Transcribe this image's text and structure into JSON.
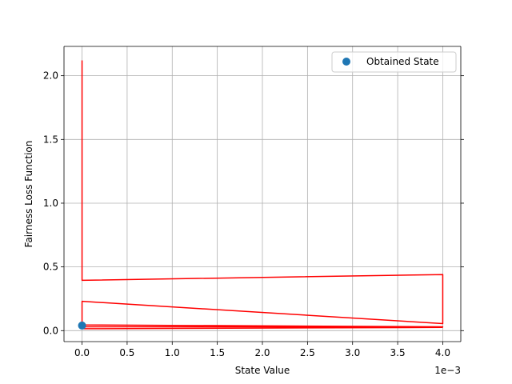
{
  "chart_data": {
    "type": "line",
    "title": "",
    "xlabel": "State Value",
    "ylabel": "Fairness Loss Function",
    "x_offset_text": "1e−3",
    "xlim": [
      -0.0002,
      0.0042
    ],
    "ylim": [
      -0.086,
      2.23
    ],
    "grid": true,
    "legend_position": "top-right",
    "x_ticks": [
      0.0,
      0.0005,
      0.001,
      0.0015,
      0.002,
      0.0025,
      0.003,
      0.0035,
      0.004
    ],
    "x_tick_labels": [
      "0.0",
      "0.5",
      "1.0",
      "1.5",
      "2.0",
      "2.5",
      "3.0",
      "3.5",
      "4.0"
    ],
    "y_ticks": [
      0.0,
      0.5,
      1.0,
      1.5,
      2.0
    ],
    "y_tick_labels": [
      "0.0",
      "0.5",
      "1.0",
      "1.5",
      "2.0"
    ],
    "series": [
      {
        "kind": "line",
        "color": "#ff0000",
        "x": [
          0.0,
          0.0,
          0.004,
          0.004,
          0.0,
          0.0,
          0.004,
          0.0,
          0.0,
          0.004
        ],
        "y": [
          2.12,
          0.395,
          0.44,
          0.055,
          0.23,
          0.045,
          0.03,
          0.03,
          0.015,
          0.025
        ]
      },
      {
        "kind": "scatter",
        "name": "Obtained State",
        "color": "#1f77b4",
        "x": [
          0.0
        ],
        "y": [
          0.04
        ]
      }
    ]
  }
}
